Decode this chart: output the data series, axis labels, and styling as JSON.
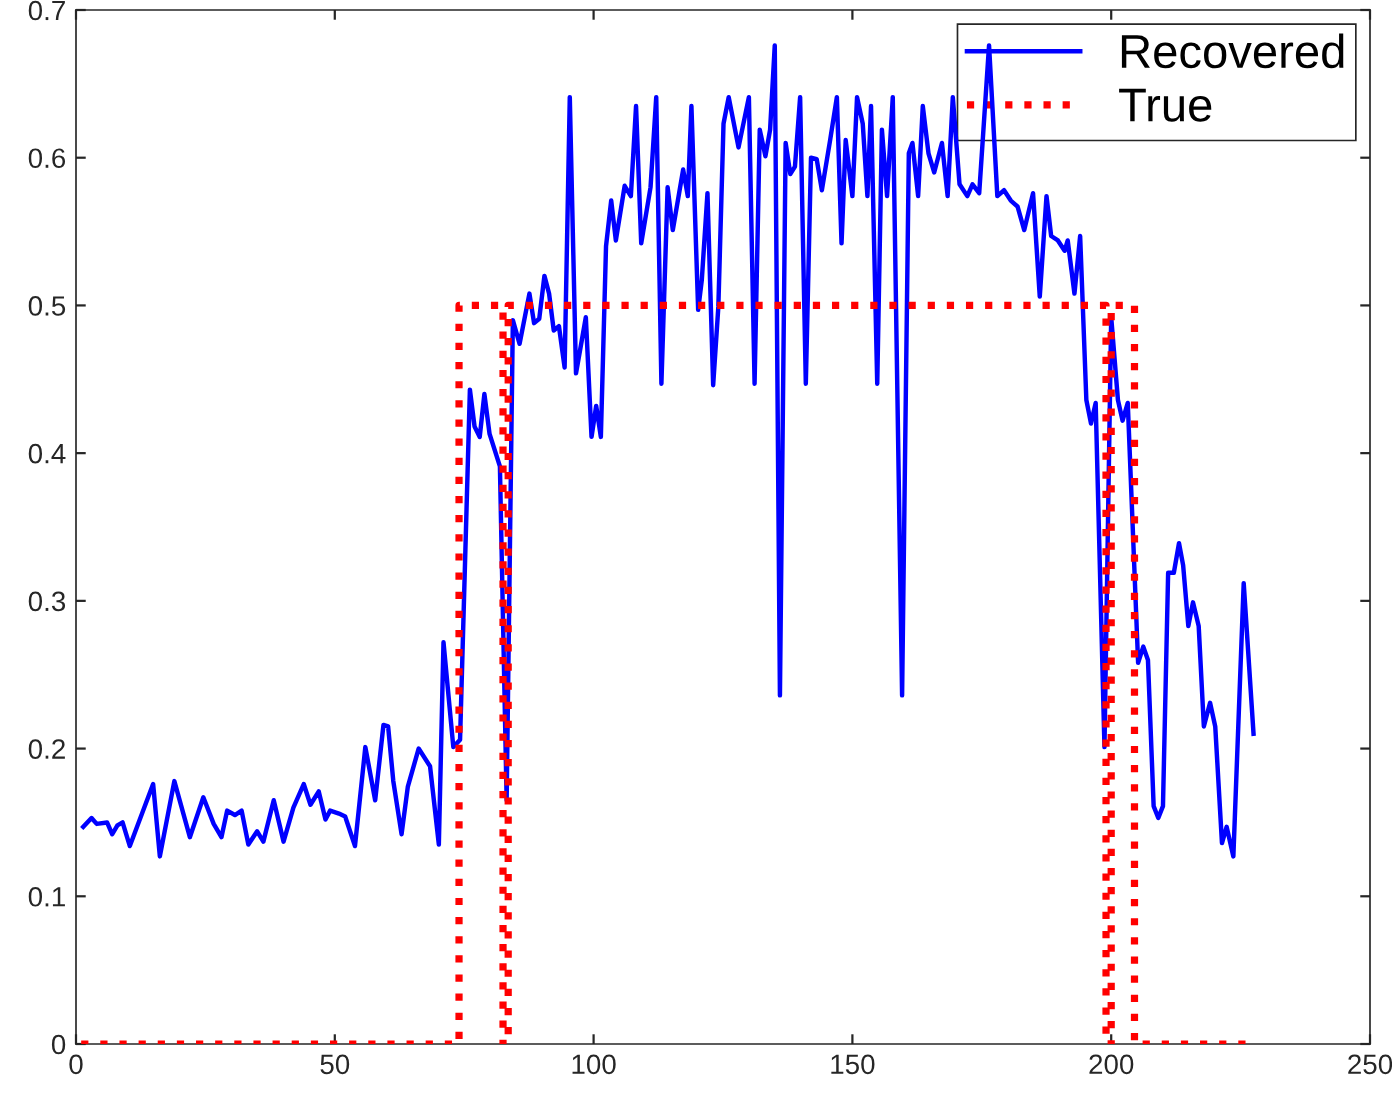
{
  "chart_data": {
    "type": "line",
    "xlim": [
      0,
      250
    ],
    "ylim": [
      0,
      0.7
    ],
    "xticks": [
      0,
      50,
      100,
      150,
      200,
      250
    ],
    "yticks": [
      0,
      0.1,
      0.2,
      0.3,
      0.4,
      0.5,
      0.6,
      0.7
    ],
    "grid": false,
    "legend": "top right",
    "marker": "none",
    "series": [
      {
        "name": "Recovered",
        "color": "#0000ff",
        "line_style": "solid",
        "x": [
          1.4,
          3,
          4,
          6,
          7,
          8,
          9,
          10.4,
          14.9,
          16.2,
          19,
          22,
          24.6,
          26.6,
          28.1,
          29.2,
          30.7,
          32,
          33.3,
          35,
          36.2,
          38.2,
          40.1,
          42,
          44,
          45.3,
          46.9,
          48.2,
          49.1,
          50.8,
          52,
          53.9,
          55.9,
          57.8,
          59.4,
          60.3,
          61.3,
          62.9,
          64.1,
          66.2,
          68.4,
          70.1,
          71,
          72.9,
          74.2,
          76.1,
          77,
          78,
          78.9,
          79.9,
          81.9,
          83.2,
          84.4,
          85.7,
          87.6,
          88.5,
          89.5,
          90.5,
          91.4,
          92.3,
          93.3,
          94.4,
          95.4,
          96.6,
          98.5,
          99.6,
          100.5,
          101.4,
          102.4,
          103.4,
          104.3,
          106,
          107.2,
          108.2,
          109.2,
          111,
          112.1,
          113.1,
          114.3,
          115.3,
          117.3,
          118.2,
          118.9,
          120.2,
          120.9,
          122,
          123.1,
          124.1,
          125.1,
          126.1,
          128,
          130,
          131.1,
          132.1,
          133.2,
          134.1,
          135,
          136,
          137.1,
          138,
          138.9,
          139.9,
          141,
          142,
          143.1,
          144.1,
          145.7,
          147,
          147.9,
          148.7,
          150,
          150.9,
          152,
          152.9,
          153.6,
          154.8,
          155.7,
          156.7,
          157.8,
          159.6,
          160.9,
          161.6,
          162.7,
          163.6,
          164.7,
          165.8,
          167.3,
          168.4,
          169.4,
          170.7,
          172.2,
          173.2,
          174.5,
          176.4,
          178,
          179.3,
          180.6,
          181.9,
          183.2,
          184.9,
          186.2,
          187.5,
          188.4,
          189.7,
          191,
          191.6,
          192.9,
          194,
          195.2,
          196.1,
          197,
          198.7,
          200,
          201.3,
          202.2,
          203.2,
          205.2,
          206.2,
          207.1,
          208.2,
          209.1,
          210,
          211,
          212.1,
          213.1,
          213.9,
          214.9,
          215.8,
          216.9,
          217.9,
          219.1,
          220.1,
          221.4,
          222.3,
          223.6,
          225.6,
          227.5
        ],
        "values": [
          0.147,
          0.153,
          0.149,
          0.15,
          0.142,
          0.148,
          0.15,
          0.134,
          0.176,
          0.127,
          0.178,
          0.14,
          0.167,
          0.149,
          0.14,
          0.158,
          0.155,
          0.158,
          0.135,
          0.144,
          0.137,
          0.165,
          0.137,
          0.16,
          0.176,
          0.162,
          0.171,
          0.152,
          0.158,
          0.156,
          0.154,
          0.134,
          0.201,
          0.165,
          0.216,
          0.215,
          0.178,
          0.142,
          0.174,
          0.2,
          0.188,
          0.135,
          0.272,
          0.201,
          0.206,
          0.443,
          0.418,
          0.411,
          0.44,
          0.413,
          0.391,
          0.165,
          0.49,
          0.474,
          0.508,
          0.488,
          0.491,
          0.52,
          0.508,
          0.483,
          0.486,
          0.458,
          0.641,
          0.454,
          0.492,
          0.411,
          0.432,
          0.411,
          0.54,
          0.571,
          0.544,
          0.581,
          0.574,
          0.635,
          0.542,
          0.58,
          0.641,
          0.447,
          0.58,
          0.551,
          0.592,
          0.574,
          0.635,
          0.497,
          0.517,
          0.576,
          0.446,
          0.499,
          0.623,
          0.641,
          0.607,
          0.641,
          0.447,
          0.619,
          0.601,
          0.619,
          0.676,
          0.236,
          0.61,
          0.589,
          0.594,
          0.641,
          0.447,
          0.6,
          0.599,
          0.578,
          0.612,
          0.641,
          0.542,
          0.612,
          0.574,
          0.641,
          0.623,
          0.574,
          0.635,
          0.447,
          0.619,
          0.574,
          0.641,
          0.236,
          0.603,
          0.61,
          0.574,
          0.635,
          0.603,
          0.59,
          0.61,
          0.574,
          0.641,
          0.582,
          0.574,
          0.582,
          0.576,
          0.676,
          0.574,
          0.578,
          0.571,
          0.567,
          0.551,
          0.576,
          0.506,
          0.574,
          0.547,
          0.544,
          0.537,
          0.544,
          0.508,
          0.547,
          0.436,
          0.42,
          0.434,
          0.201,
          0.492,
          0.436,
          0.422,
          0.434,
          0.258,
          0.269,
          0.26,
          0.161,
          0.153,
          0.161,
          0.319,
          0.319,
          0.339,
          0.324,
          0.283,
          0.299,
          0.283,
          0.215,
          0.231,
          0.215,
          0.136,
          0.147,
          0.127,
          0.312,
          0.21
        ]
      },
      {
        "name": "True",
        "color": "#ff0000",
        "line_style": "dotted",
        "x": [
          1,
          74,
          74,
          82.5,
          82.5,
          83.5,
          83.5,
          199,
          199,
          200,
          200,
          204.5,
          204.5,
          228
        ],
        "values": [
          0,
          0,
          0.5,
          0.5,
          0,
          0,
          0.5,
          0.5,
          0,
          0,
          0.5,
          0.5,
          0,
          0
        ]
      }
    ]
  }
}
